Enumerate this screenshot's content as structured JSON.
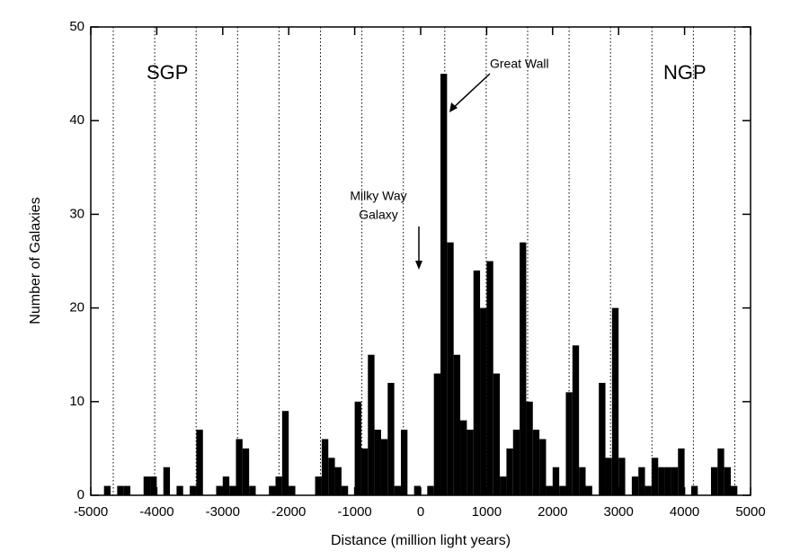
{
  "chart_data": {
    "type": "histogram",
    "xlabel": "Distance (million light years)",
    "ylabel": "Number of Galaxies",
    "bins": [
      -5000,
      -4900,
      -4800,
      -4700,
      -4600,
      -4500,
      -4400,
      -4300,
      -4200,
      -4100,
      -4000,
      -3900,
      -3800,
      -3700,
      -3600,
      -3500,
      -3400,
      -3300,
      -3200,
      -3100,
      -3000,
      -2900,
      -2800,
      -2700,
      -2600,
      -2500,
      -2400,
      -2300,
      -2200,
      -2100,
      -2000,
      -1900,
      -1800,
      -1700,
      -1600,
      -1500,
      -1400,
      -1300,
      -1200,
      -1100,
      -1000,
      -900,
      -800,
      -700,
      -600,
      -500,
      -400,
      -300,
      -200,
      -100,
      0,
      100,
      200,
      300,
      400,
      500,
      600,
      700,
      800,
      900,
      1000,
      1100,
      1200,
      1300,
      1400,
      1500,
      1600,
      1700,
      1800,
      1900,
      2000,
      2100,
      2200,
      2300,
      2400,
      2500,
      2600,
      2700,
      2800,
      2900,
      3000,
      3100,
      3200,
      3300,
      3400,
      3500,
      3600,
      3700,
      3800,
      3900,
      4000,
      4100,
      4200,
      4300,
      4400,
      4500,
      4600,
      4700,
      4800,
      4900,
      5000
    ],
    "values": [
      0,
      0,
      1,
      0,
      1,
      1,
      0,
      0,
      2,
      2,
      0,
      3,
      0,
      1,
      0,
      1,
      7,
      0,
      0,
      1,
      2,
      1,
      6,
      5,
      1,
      0,
      0,
      1,
      2,
      9,
      1,
      0,
      0,
      0,
      2,
      6,
      4,
      3,
      1,
      0,
      10,
      5,
      15,
      7,
      6,
      12,
      1,
      7,
      0,
      1,
      0,
      1,
      13,
      45,
      27,
      15,
      8,
      7,
      24,
      20,
      25,
      13,
      2,
      5,
      7,
      27,
      10,
      7,
      6,
      1,
      3,
      1,
      11,
      16,
      3,
      1,
      0,
      12,
      4,
      20,
      4,
      0,
      2,
      3,
      1,
      4,
      3,
      3,
      3,
      5,
      0,
      1,
      0,
      0,
      3,
      5,
      3,
      1,
      0,
      0
    ],
    "color": "#000000",
    "xlim": [
      -5000,
      5000
    ],
    "xticks": [
      -5000,
      -4000,
      -3000,
      -2000,
      -1000,
      0,
      1000,
      2000,
      3000,
      4000,
      5000
    ],
    "ylim": [
      0,
      50
    ],
    "yticks": [
      0,
      10,
      20,
      30,
      40,
      50
    ],
    "annotations": [
      "SGP",
      "NGP",
      "Great Wall",
      "Milky Way",
      "Galaxy"
    ]
  }
}
